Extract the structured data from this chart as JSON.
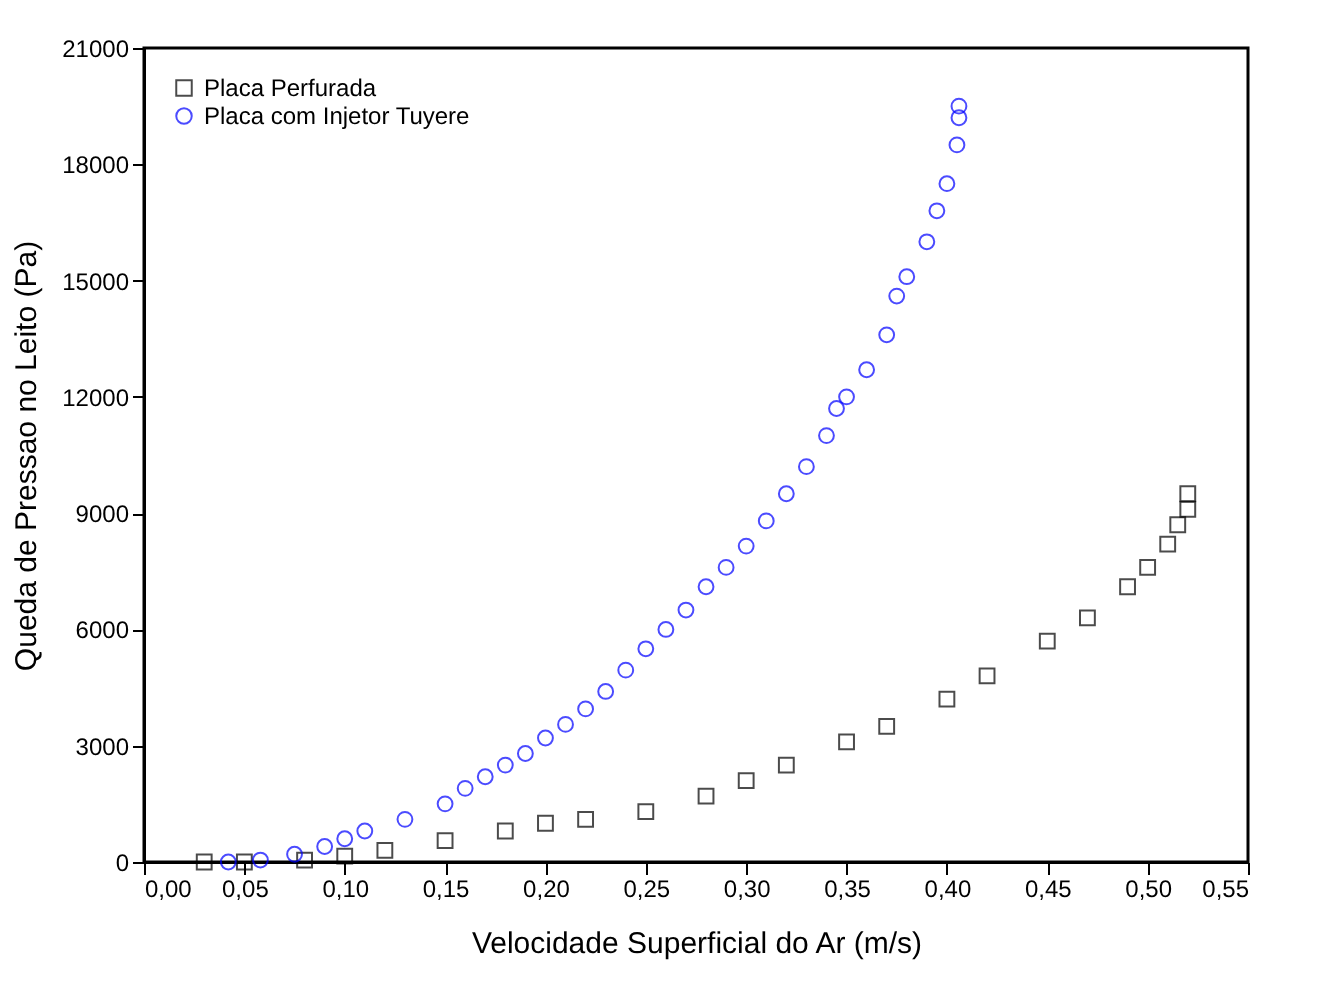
{
  "chart_data": {
    "type": "scatter",
    "xlabel": "Velocidade Superficial do Ar (m/s)",
    "ylabel": "Queda de Pressao no Leito (Pa)",
    "xlim": [
      0,
      0.55
    ],
    "xticks": [
      {
        "value": 0,
        "label": "0,00"
      },
      {
        "value": 0.05,
        "label": "0,05"
      },
      {
        "value": 0.1,
        "label": "0,10"
      },
      {
        "value": 0.15,
        "label": "0,15"
      },
      {
        "value": 0.2,
        "label": "0,20"
      },
      {
        "value": 0.25,
        "label": "0,25"
      },
      {
        "value": 0.3,
        "label": "0,30"
      },
      {
        "value": 0.35,
        "label": "0,35"
      },
      {
        "value": 0.4,
        "label": "0,40"
      },
      {
        "value": 0.45,
        "label": "0,45"
      },
      {
        "value": 0.5,
        "label": "0,50"
      },
      {
        "value": 0.55,
        "label": "0,55"
      }
    ],
    "ylim": [
      0,
      21000
    ],
    "yticks": [
      0,
      3000,
      6000,
      9000,
      12000,
      15000,
      18000,
      21000
    ],
    "legend": "top left",
    "grid": false,
    "series": [
      {
        "name": "Placa Perfurada",
        "color": "#000000",
        "marker": "square",
        "x": [
          0.03,
          0.05,
          0.08,
          0.1,
          0.12,
          0.15,
          0.18,
          0.2,
          0.22,
          0.25,
          0.28,
          0.3,
          0.32,
          0.35,
          0.37,
          0.4,
          0.42,
          0.45,
          0.47,
          0.49,
          0.5,
          0.51,
          0.515,
          0.52,
          0.52
        ],
        "values": [
          0,
          0,
          50,
          150,
          300,
          550,
          800,
          1000,
          1100,
          1300,
          1700,
          2100,
          2500,
          3100,
          3500,
          4200,
          4800,
          5700,
          6300,
          7100,
          7600,
          8200,
          8700,
          9100,
          9500
        ]
      },
      {
        "name": "Placa com Injetor Tuyere",
        "color": "#0000ff",
        "marker": "circle",
        "x": [
          0.042,
          0.058,
          0.075,
          0.09,
          0.1,
          0.11,
          0.13,
          0.15,
          0.16,
          0.17,
          0.18,
          0.19,
          0.2,
          0.21,
          0.22,
          0.23,
          0.24,
          0.25,
          0.26,
          0.27,
          0.28,
          0.29,
          0.3,
          0.31,
          0.32,
          0.33,
          0.34,
          0.345,
          0.35,
          0.36,
          0.37,
          0.375,
          0.38,
          0.39,
          0.395,
          0.4,
          0.405,
          0.406,
          0.406
        ],
        "values": [
          0,
          50,
          200,
          400,
          600,
          800,
          1100,
          1500,
          1900,
          2200,
          2500,
          2800,
          3200,
          3550,
          3950,
          4400,
          4950,
          5500,
          6000,
          6500,
          7100,
          7600,
          8150,
          8800,
          9500,
          10200,
          11000,
          11700,
          12000,
          12700,
          13600,
          14600,
          15100,
          16000,
          16800,
          17500,
          18500,
          19200,
          19500
        ]
      }
    ]
  }
}
